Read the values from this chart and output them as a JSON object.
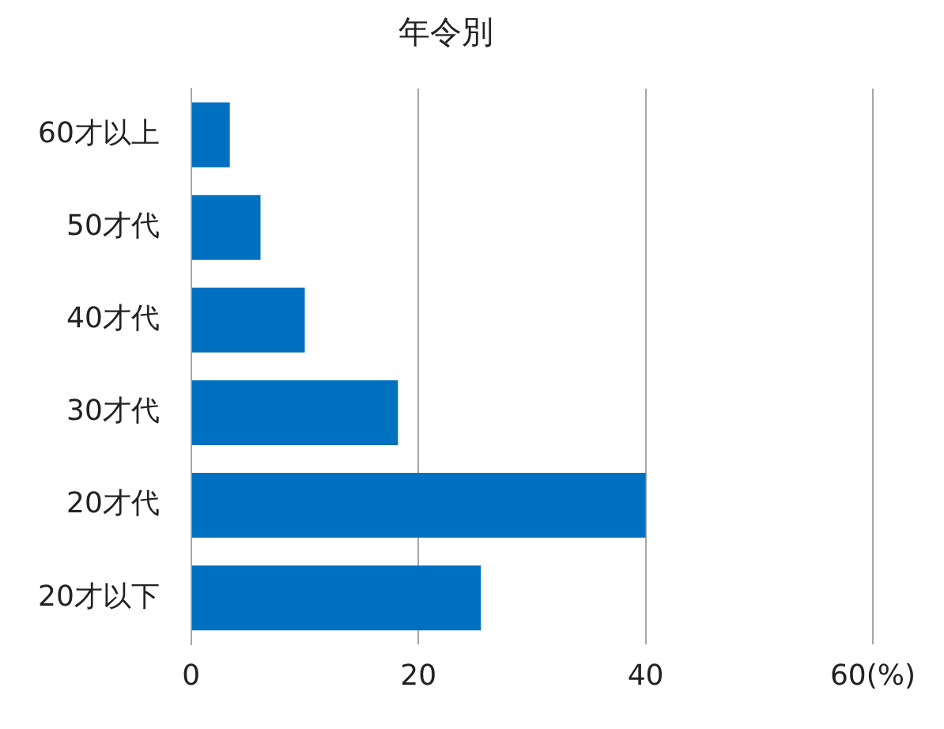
{
  "chart_data": {
    "type": "bar",
    "orientation": "horizontal",
    "title": "年令別",
    "categories": [
      "60才以上",
      "50才代",
      "40才代",
      "30才代",
      "20才代",
      "20才以下"
    ],
    "values": [
      3.4,
      6.1,
      10,
      18.2,
      40,
      25.5
    ],
    "color": "#0070c0",
    "xlim": [
      0,
      60
    ],
    "xticks": [
      0,
      20,
      40,
      {
        "value": 60,
        "label": "60(%)"
      }
    ],
    "grid": "x",
    "legend": false
  }
}
